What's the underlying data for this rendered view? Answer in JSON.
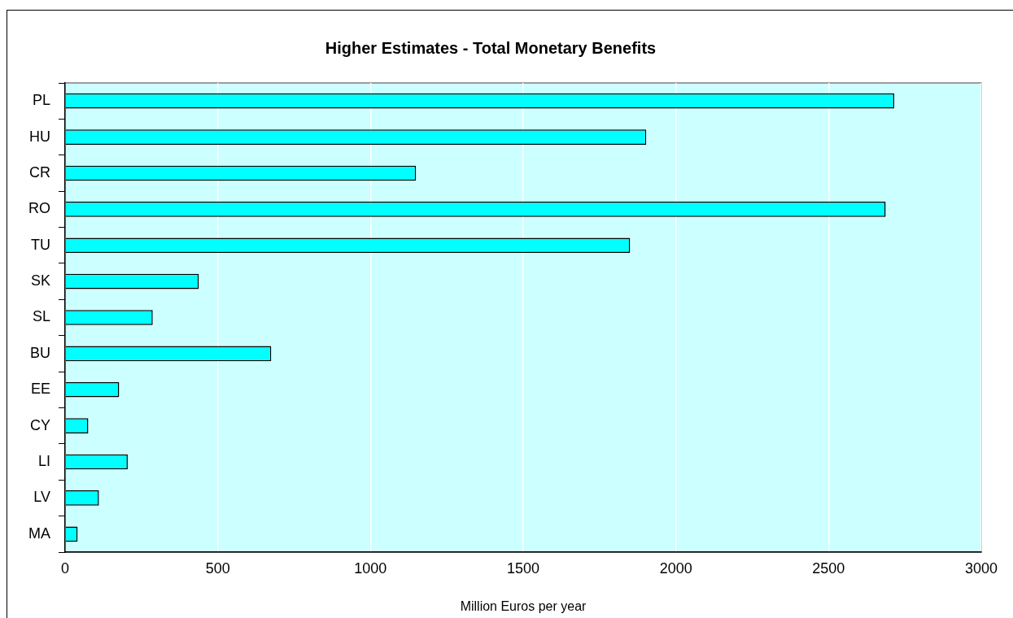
{
  "chart_data": {
    "type": "bar",
    "orientation": "horizontal",
    "title": "Higher Estimates - Total Monetary Benefits",
    "xlabel": "Million Euros per year",
    "categories": [
      "PL",
      "HU",
      "CR",
      "RO",
      "TU",
      "SK",
      "SL",
      "BU",
      "EE",
      "CY",
      "LI",
      "LV",
      "MA"
    ],
    "values": [
      2715,
      1903,
      1149,
      2687,
      1850,
      438,
      287,
      675,
      177,
      76,
      205,
      111,
      41
    ],
    "color": "#00ffff",
    "xlim": [
      0,
      3000
    ],
    "xticks": [
      0,
      500,
      1000,
      1500,
      2000,
      2500,
      3000
    ],
    "grid": "x",
    "legend": false
  }
}
